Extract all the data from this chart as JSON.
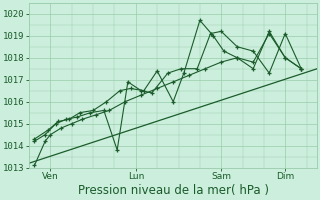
{
  "bg_color": "#cceedd",
  "grid_color": "#99ccaa",
  "line_color": "#1a5c2a",
  "ylim": [
    1013,
    1020.5
  ],
  "yticks": [
    1013,
    1014,
    1015,
    1016,
    1017,
    1018,
    1019,
    1020
  ],
  "xlabel": "Pression niveau de la mer( hPa )",
  "xlabel_fontsize": 8.5,
  "tick_fontsize": 6.5,
  "xtick_labels": [
    "Ven",
    "Lun",
    "Sam",
    "Dim"
  ],
  "xtick_positions": [
    8,
    40,
    72,
    96
  ],
  "xlim": [
    0,
    108
  ],
  "series1_x": [
    2,
    6,
    8,
    12,
    16,
    20,
    25,
    30,
    36,
    42,
    48,
    54,
    60,
    66,
    72,
    78,
    84,
    90,
    96,
    102
  ],
  "series1_y": [
    1013.1,
    1014.2,
    1014.5,
    1014.8,
    1015.0,
    1015.2,
    1015.4,
    1015.6,
    1016.0,
    1016.3,
    1016.6,
    1016.9,
    1017.2,
    1017.5,
    1017.8,
    1018.0,
    1017.8,
    1019.1,
    1018.0,
    1017.5
  ],
  "series2_x": [
    2,
    6,
    10,
    14,
    18,
    23,
    28,
    33,
    37,
    42,
    46,
    52,
    57,
    63,
    68,
    72,
    78,
    84,
    90,
    96,
    102
  ],
  "series2_y": [
    1014.2,
    1014.5,
    1015.0,
    1015.2,
    1015.3,
    1015.5,
    1015.6,
    1013.8,
    1016.9,
    1016.5,
    1016.4,
    1017.3,
    1017.5,
    1017.5,
    1019.1,
    1019.2,
    1018.5,
    1018.3,
    1017.3,
    1019.1,
    1017.5
  ],
  "series3_x": [
    2,
    7,
    11,
    15,
    19,
    24,
    29,
    34,
    38,
    43,
    48,
    54,
    58,
    64,
    69,
    73,
    78,
    84,
    90,
    96,
    102
  ],
  "series3_y": [
    1014.3,
    1014.7,
    1015.1,
    1015.2,
    1015.5,
    1015.6,
    1016.0,
    1016.5,
    1016.6,
    1016.5,
    1017.4,
    1016.0,
    1017.3,
    1019.7,
    1019.0,
    1018.3,
    1018.0,
    1017.5,
    1019.2,
    1018.0,
    1017.5
  ],
  "trend_x": [
    0,
    108
  ],
  "trend_y": [
    1013.2,
    1017.5
  ]
}
